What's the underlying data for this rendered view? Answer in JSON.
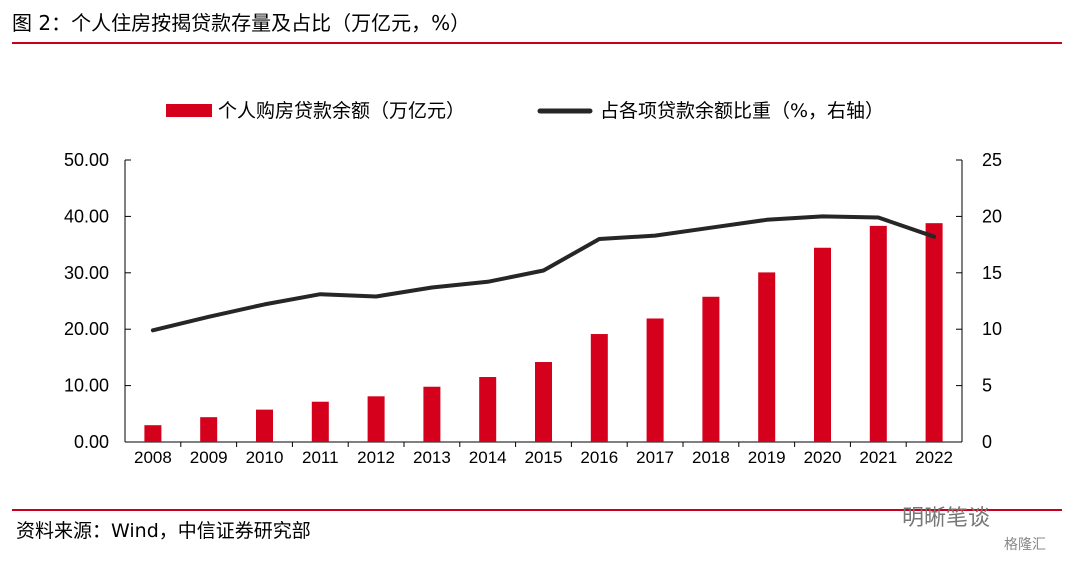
{
  "page": {
    "figure_title": "图 2：个人住房按揭贷款存量及占比（万亿元，%）",
    "source": "资料来源：Wind，中信证券研究部",
    "watermark": "明晰笔谈",
    "watermark2": "格隆汇"
  },
  "colors": {
    "bar": "#d4001c",
    "line": "#262626",
    "rule": "#c8001e"
  },
  "chart_data": {
    "type": "bar",
    "categories": [
      "2008",
      "2009",
      "2010",
      "2011",
      "2012",
      "2013",
      "2014",
      "2015",
      "2016",
      "2017",
      "2018",
      "2019",
      "2020",
      "2021",
      "2022"
    ],
    "series": [
      {
        "name": "个人购房贷款余额（万亿元）",
        "type": "bar",
        "axis": "left",
        "values": [
          2.98,
          4.4,
          5.74,
          7.14,
          8.1,
          9.8,
          11.52,
          14.18,
          19.14,
          21.9,
          25.75,
          30.07,
          34.44,
          38.32,
          38.8
        ]
      },
      {
        "name": "占各项贷款余额比重（%，右轴）",
        "type": "line",
        "axis": "right",
        "values": [
          9.9,
          11.1,
          12.2,
          13.1,
          12.9,
          13.7,
          14.2,
          15.2,
          18.0,
          18.3,
          19.0,
          19.7,
          20.0,
          19.9,
          18.2
        ]
      }
    ],
    "y_left": {
      "lim": [
        0,
        50
      ],
      "ticks": [
        "0.00",
        "10.00",
        "20.00",
        "30.00",
        "40.00",
        "50.00"
      ]
    },
    "y_right": {
      "lim": [
        0,
        25
      ],
      "ticks": [
        "0",
        "5",
        "10",
        "15",
        "20",
        "25"
      ]
    },
    "grid": false,
    "legend": "top"
  }
}
